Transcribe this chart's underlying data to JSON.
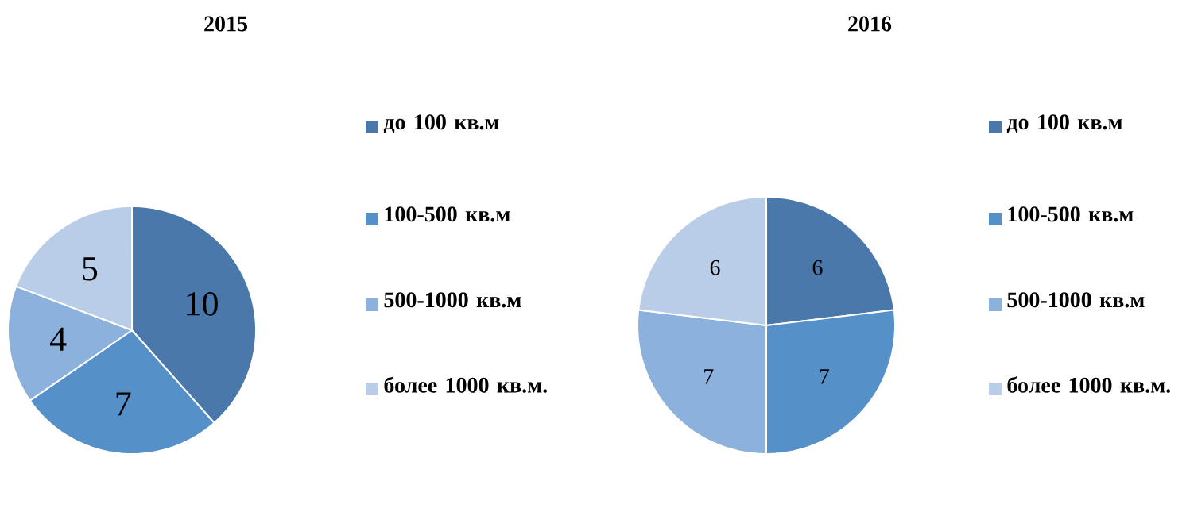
{
  "chart_data": [
    {
      "type": "pie",
      "title": "2015",
      "categories": [
        "до 100 кв.м",
        "100-500 кв.м",
        "500-1000 кв.м",
        "более 1000 кв.м."
      ],
      "values": [
        10,
        7,
        4,
        5
      ],
      "colors": [
        "#4a78aa",
        "#5590c8",
        "#8cb1dc",
        "#b9cde8"
      ],
      "data_labels": true,
      "legend": "right"
    },
    {
      "type": "pie",
      "title": "2016",
      "categories": [
        "до 100 кв.м",
        "100-500 кв.м",
        "500-1000 кв.м",
        "более 1000 кв.м."
      ],
      "values": [
        6,
        7,
        7,
        6
      ],
      "colors": [
        "#4a78aa",
        "#5590c8",
        "#8cb1dc",
        "#b9cde8"
      ],
      "data_labels": true,
      "legend": "right"
    }
  ]
}
